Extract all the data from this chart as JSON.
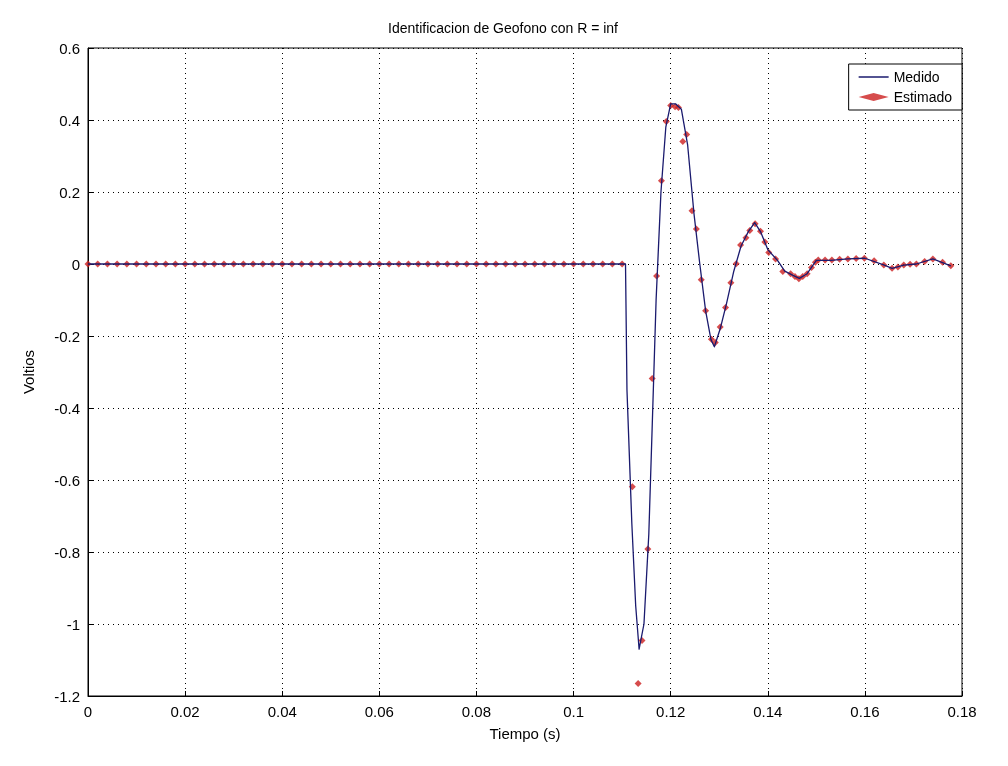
{
  "chart_data": {
    "type": "line",
    "title": "Identificacion de Geofono con R = inf",
    "xlabel": "Tiempo (s)",
    "ylabel": "Voltios",
    "xlim": [
      0,
      0.18
    ],
    "xticks": [
      0,
      0.02,
      0.04,
      0.06,
      0.08,
      0.1,
      0.12,
      0.14,
      0.16,
      0.18
    ],
    "ylim": [
      -1.2,
      0.6
    ],
    "yticks": [
      -1.2,
      -1,
      -0.8,
      -0.6,
      -0.4,
      -0.2,
      0,
      0.2,
      0.4,
      0.6
    ],
    "grid": true,
    "legend": "top right",
    "series": [
      {
        "name": "Medido",
        "color": "#1a1a6e",
        "marker": "none",
        "line_style": "solid",
        "x": [
          0,
          0.1107,
          0.111,
          0.112,
          0.1128,
          0.1135,
          0.1145,
          0.1155,
          0.1162,
          0.117,
          0.118,
          0.119,
          0.12,
          0.121,
          0.1222,
          0.1235,
          0.1248,
          0.126,
          0.1272,
          0.1283,
          0.129,
          0.1302,
          0.1315,
          0.133,
          0.1345,
          0.136,
          0.1373,
          0.1385,
          0.14,
          0.142,
          0.1435,
          0.145,
          0.1465,
          0.1481,
          0.15,
          0.153,
          0.1565,
          0.16,
          0.164,
          0.1656,
          0.168,
          0.1706,
          0.174,
          0.1777
        ],
        "values": [
          0,
          0,
          -0.35,
          -0.72,
          -0.95,
          -1.07,
          -1.0,
          -0.75,
          -0.45,
          -0.1,
          0.2,
          0.38,
          0.445,
          0.445,
          0.43,
          0.33,
          0.14,
          0.0,
          -0.13,
          -0.21,
          -0.23,
          -0.18,
          -0.11,
          -0.02,
          0.05,
          0.09,
          0.115,
          0.09,
          0.04,
          0.01,
          -0.02,
          -0.03,
          -0.04,
          -0.027,
          0.01,
          0.01,
          0.014,
          0.016,
          -0.003,
          -0.012,
          -0.003,
          0,
          0.014,
          -0.005
        ]
      },
      {
        "name": "Estimado",
        "type": "scatter",
        "color": "#cc1f1f",
        "marker": "diamond",
        "x": [
          0,
          0.002,
          0.004,
          0.006,
          0.008,
          0.01,
          0.012,
          0.014,
          0.016,
          0.018,
          0.02,
          0.022,
          0.024,
          0.026,
          0.028,
          0.03,
          0.032,
          0.034,
          0.036,
          0.038,
          0.04,
          0.042,
          0.044,
          0.046,
          0.048,
          0.05,
          0.052,
          0.054,
          0.056,
          0.058,
          0.06,
          0.062,
          0.064,
          0.066,
          0.068,
          0.07,
          0.072,
          0.074,
          0.076,
          0.078,
          0.08,
          0.082,
          0.084,
          0.086,
          0.088,
          0.09,
          0.092,
          0.094,
          0.096,
          0.098,
          0.1,
          0.102,
          0.104,
          0.106,
          0.108,
          0.11,
          0.1121,
          0.1133,
          0.1141,
          0.1153,
          0.1162,
          0.1171,
          0.1181,
          0.1191,
          0.12,
          0.1209,
          0.1216,
          0.1225,
          0.1233,
          0.1244,
          0.1253,
          0.1263,
          0.1272,
          0.1284,
          0.1292,
          0.1302,
          0.1313,
          0.1324,
          0.1335,
          0.1344,
          0.1355,
          0.1363,
          0.1374,
          0.1385,
          0.1394,
          0.1402,
          0.1416,
          0.1431,
          0.1447,
          0.1456,
          0.1464,
          0.1472,
          0.1481,
          0.149,
          0.1498,
          0.1504,
          0.1518,
          0.1532,
          0.1548,
          0.1565,
          0.1582,
          0.1599,
          0.1619,
          0.1639,
          0.1656,
          0.1668,
          0.168,
          0.1693,
          0.1706,
          0.1723,
          0.174,
          0.176,
          0.1777
        ],
        "values": [
          0,
          0,
          0,
          0,
          0,
          0,
          0,
          0,
          0,
          0,
          0,
          0,
          0,
          0,
          0,
          0,
          0,
          0,
          0,
          0,
          0,
          0,
          0,
          0,
          0,
          0,
          0,
          0,
          0,
          0,
          0,
          0,
          0,
          0,
          0,
          0,
          0,
          0,
          0,
          0,
          0,
          0,
          0,
          0,
          0,
          0,
          0,
          0,
          0,
          0,
          0,
          0,
          0,
          0,
          0,
          0,
          -0.619,
          -1.165,
          -1.046,
          -0.792,
          -0.318,
          -0.033,
          0.231,
          0.396,
          0.44,
          0.437,
          0.435,
          0.34,
          0.36,
          0.148,
          0.097,
          -0.044,
          -0.13,
          -0.209,
          -0.218,
          -0.175,
          -0.121,
          -0.052,
          0.001,
          0.053,
          0.073,
          0.093,
          0.112,
          0.091,
          0.061,
          0.032,
          0.014,
          -0.021,
          -0.027,
          -0.035,
          -0.041,
          -0.035,
          -0.027,
          -0.01,
          0.005,
          0.011,
          0.011,
          0.011,
          0.013,
          0.014,
          0.015,
          0.016,
          0.009,
          -0.003,
          -0.012,
          -0.008,
          -0.003,
          -0.001,
          0,
          0.007,
          0.014,
          0.005,
          -0.005
        ]
      }
    ]
  }
}
